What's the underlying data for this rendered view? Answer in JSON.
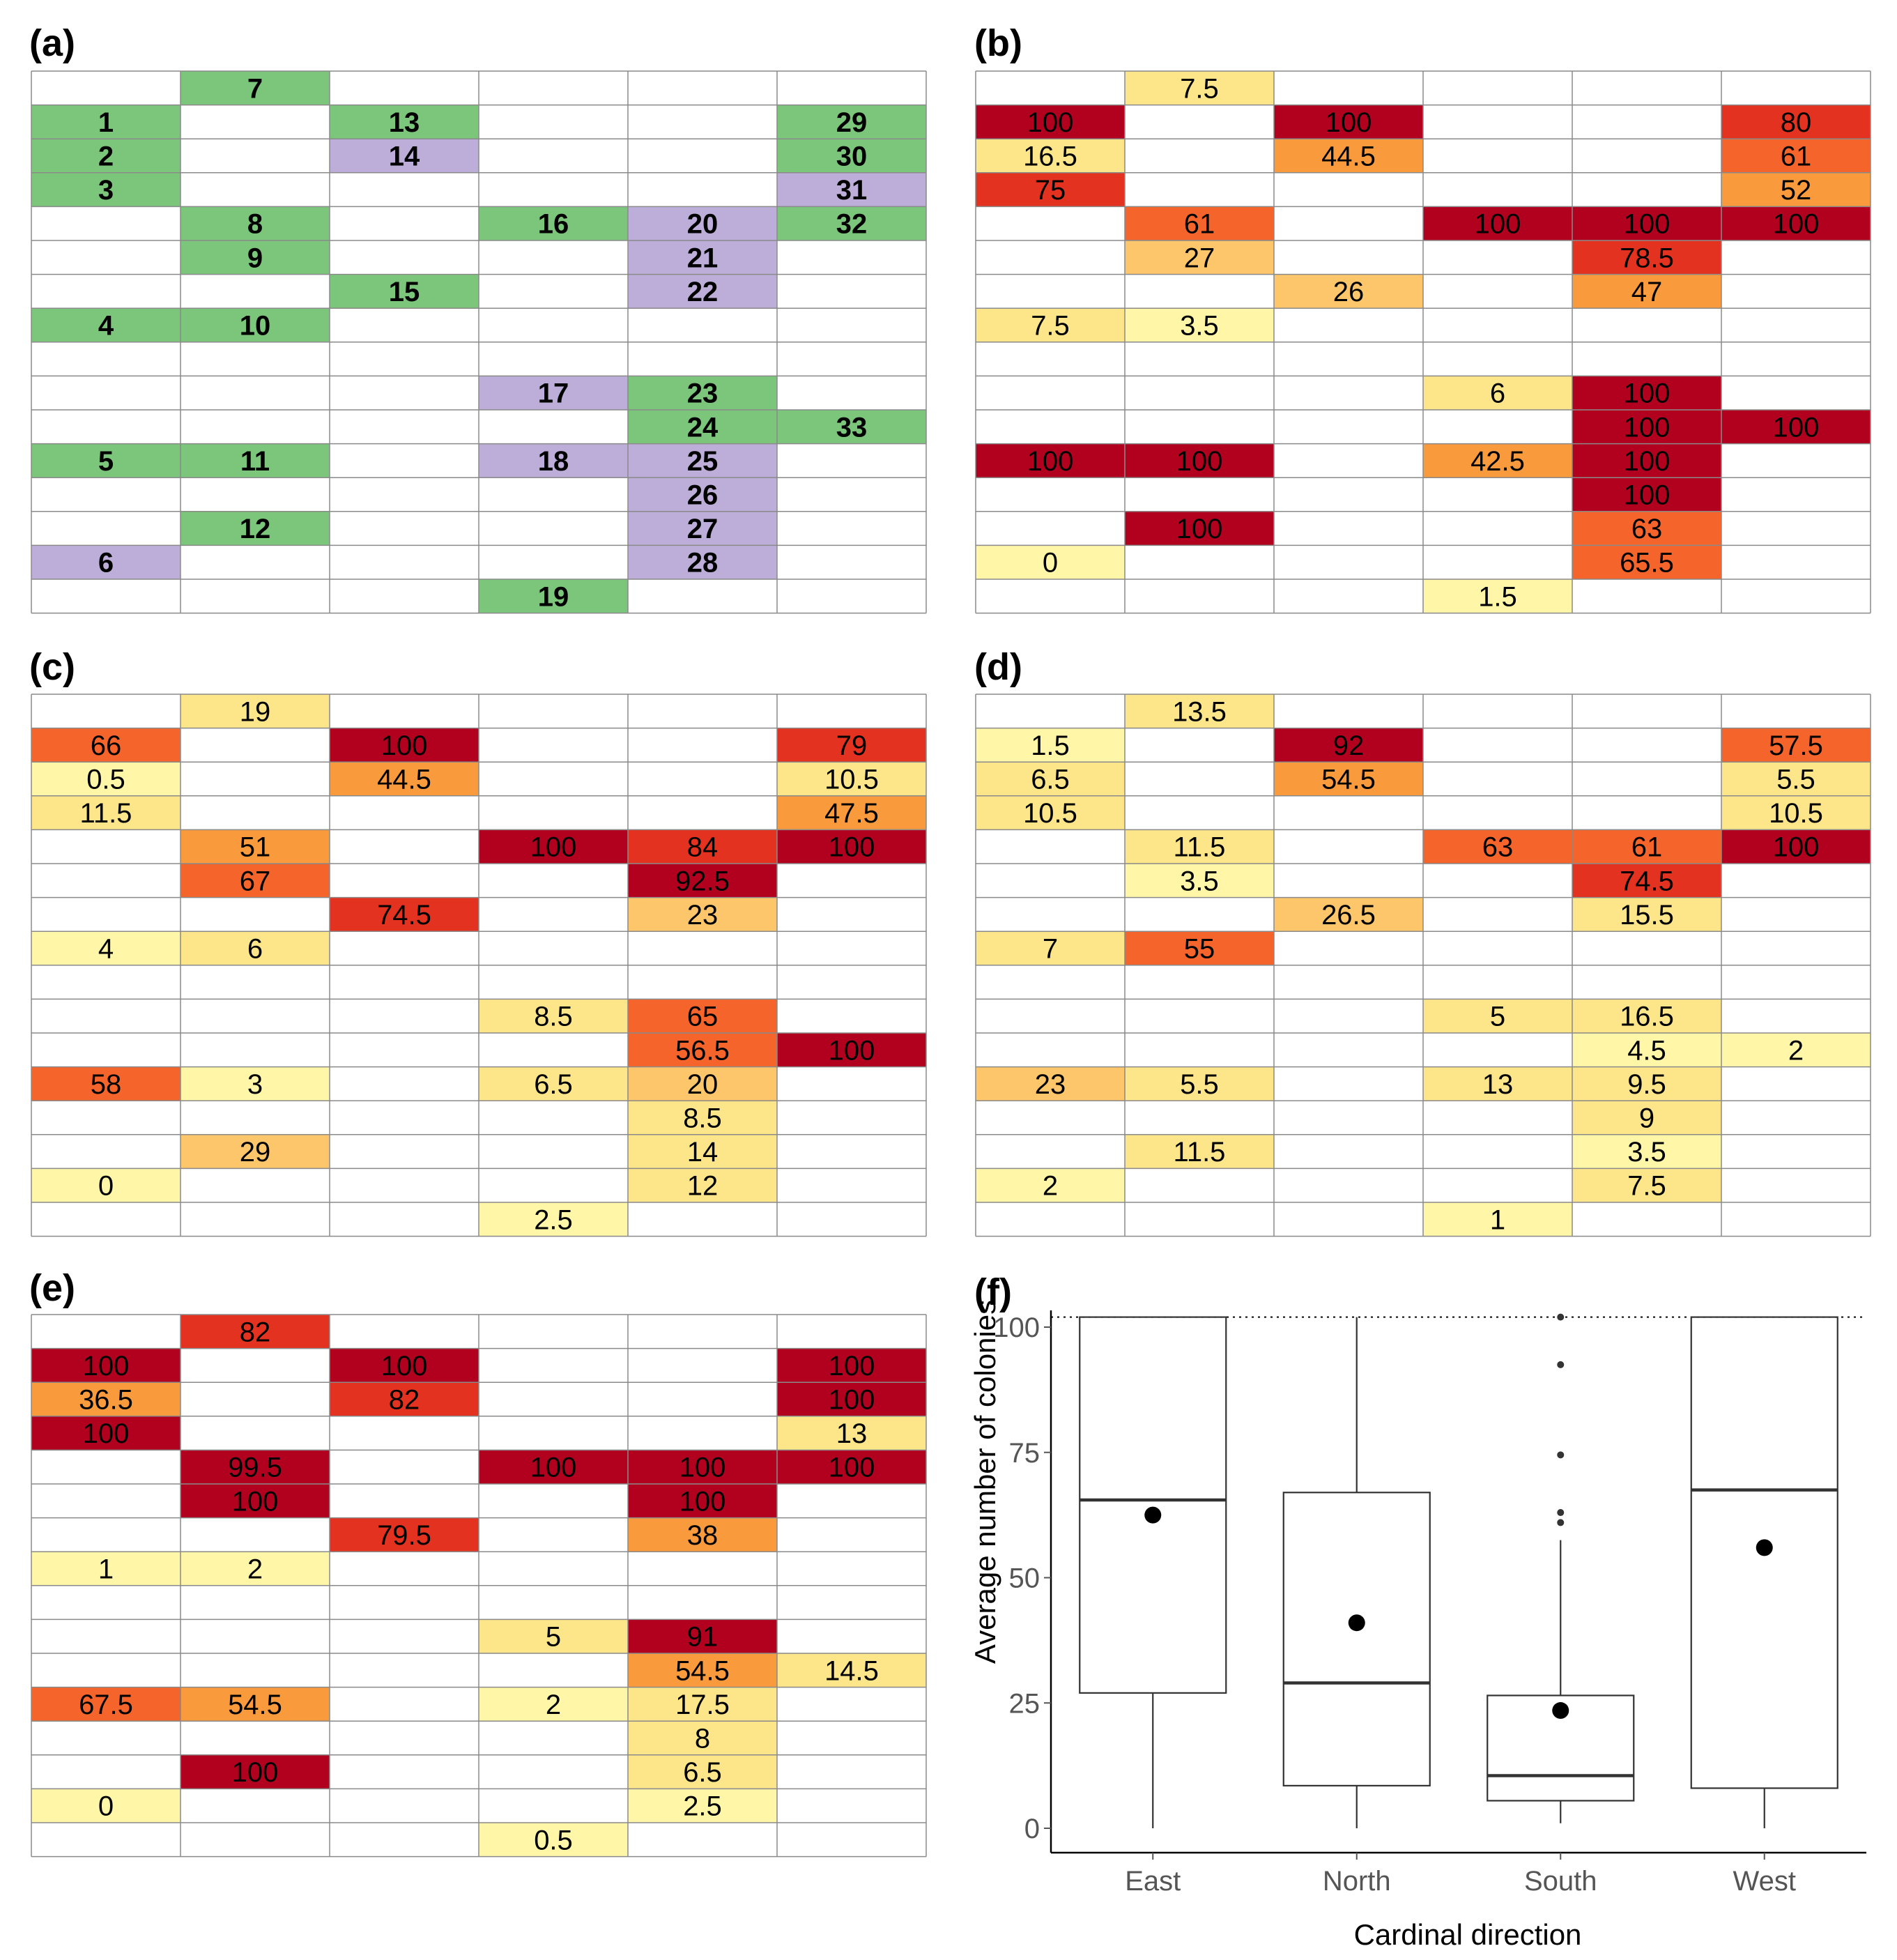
{
  "panels": [
    {
      "id": "a",
      "label": "(a)",
      "kind": "site",
      "cells": [
        {
          "r": 0,
          "c": 1,
          "v": "7",
          "cls": "g"
        },
        {
          "r": 1,
          "c": 0,
          "v": "1",
          "cls": "g"
        },
        {
          "r": 1,
          "c": 2,
          "v": "13",
          "cls": "g"
        },
        {
          "r": 1,
          "c": 5,
          "v": "29",
          "cls": "g"
        },
        {
          "r": 2,
          "c": 0,
          "v": "2",
          "cls": "g"
        },
        {
          "r": 2,
          "c": 2,
          "v": "14",
          "cls": "p"
        },
        {
          "r": 2,
          "c": 5,
          "v": "30",
          "cls": "g"
        },
        {
          "r": 3,
          "c": 0,
          "v": "3",
          "cls": "g"
        },
        {
          "r": 3,
          "c": 5,
          "v": "31",
          "cls": "p"
        },
        {
          "r": 4,
          "c": 1,
          "v": "8",
          "cls": "g"
        },
        {
          "r": 4,
          "c": 3,
          "v": "16",
          "cls": "g"
        },
        {
          "r": 4,
          "c": 4,
          "v": "20",
          "cls": "p"
        },
        {
          "r": 4,
          "c": 5,
          "v": "32",
          "cls": "g"
        },
        {
          "r": 5,
          "c": 1,
          "v": "9",
          "cls": "g"
        },
        {
          "r": 5,
          "c": 4,
          "v": "21",
          "cls": "p"
        },
        {
          "r": 6,
          "c": 2,
          "v": "15",
          "cls": "g"
        },
        {
          "r": 6,
          "c": 4,
          "v": "22",
          "cls": "p"
        },
        {
          "r": 7,
          "c": 0,
          "v": "4",
          "cls": "g"
        },
        {
          "r": 7,
          "c": 1,
          "v": "10",
          "cls": "g"
        },
        {
          "r": 9,
          "c": 3,
          "v": "17",
          "cls": "p"
        },
        {
          "r": 9,
          "c": 4,
          "v": "23",
          "cls": "g"
        },
        {
          "r": 10,
          "c": 4,
          "v": "24",
          "cls": "g"
        },
        {
          "r": 10,
          "c": 5,
          "v": "33",
          "cls": "g"
        },
        {
          "r": 11,
          "c": 0,
          "v": "5",
          "cls": "g"
        },
        {
          "r": 11,
          "c": 1,
          "v": "11",
          "cls": "g"
        },
        {
          "r": 11,
          "c": 3,
          "v": "18",
          "cls": "p"
        },
        {
          "r": 11,
          "c": 4,
          "v": "25",
          "cls": "p"
        },
        {
          "r": 12,
          "c": 4,
          "v": "26",
          "cls": "p"
        },
        {
          "r": 13,
          "c": 1,
          "v": "12",
          "cls": "g"
        },
        {
          "r": 13,
          "c": 4,
          "v": "27",
          "cls": "p"
        },
        {
          "r": 14,
          "c": 0,
          "v": "6",
          "cls": "p"
        },
        {
          "r": 14,
          "c": 4,
          "v": "28",
          "cls": "p"
        },
        {
          "r": 15,
          "c": 3,
          "v": "19",
          "cls": "g"
        }
      ]
    },
    {
      "id": "b",
      "label": "(b)",
      "kind": "heat",
      "cells": [
        {
          "r": 0,
          "c": 1,
          "v": "7.5"
        },
        {
          "r": 1,
          "c": 0,
          "v": "100"
        },
        {
          "r": 1,
          "c": 2,
          "v": "100"
        },
        {
          "r": 1,
          "c": 5,
          "v": "80"
        },
        {
          "r": 2,
          "c": 0,
          "v": "16.5"
        },
        {
          "r": 2,
          "c": 2,
          "v": "44.5"
        },
        {
          "r": 2,
          "c": 5,
          "v": "61"
        },
        {
          "r": 3,
          "c": 0,
          "v": "75"
        },
        {
          "r": 3,
          "c": 5,
          "v": "52"
        },
        {
          "r": 4,
          "c": 1,
          "v": "61"
        },
        {
          "r": 4,
          "c": 3,
          "v": "100"
        },
        {
          "r": 4,
          "c": 4,
          "v": "100"
        },
        {
          "r": 4,
          "c": 5,
          "v": "100"
        },
        {
          "r": 5,
          "c": 1,
          "v": "27"
        },
        {
          "r": 5,
          "c": 4,
          "v": "78.5"
        },
        {
          "r": 6,
          "c": 2,
          "v": "26"
        },
        {
          "r": 6,
          "c": 4,
          "v": "47"
        },
        {
          "r": 7,
          "c": 0,
          "v": "7.5"
        },
        {
          "r": 7,
          "c": 1,
          "v": "3.5"
        },
        {
          "r": 9,
          "c": 3,
          "v": "6"
        },
        {
          "r": 9,
          "c": 4,
          "v": "100"
        },
        {
          "r": 10,
          "c": 4,
          "v": "100"
        },
        {
          "r": 10,
          "c": 5,
          "v": "100"
        },
        {
          "r": 11,
          "c": 0,
          "v": "100"
        },
        {
          "r": 11,
          "c": 1,
          "v": "100"
        },
        {
          "r": 11,
          "c": 3,
          "v": "42.5"
        },
        {
          "r": 11,
          "c": 4,
          "v": "100"
        },
        {
          "r": 12,
          "c": 4,
          "v": "100"
        },
        {
          "r": 13,
          "c": 1,
          "v": "100"
        },
        {
          "r": 13,
          "c": 4,
          "v": "63"
        },
        {
          "r": 14,
          "c": 0,
          "v": "0"
        },
        {
          "r": 14,
          "c": 4,
          "v": "65.5"
        },
        {
          "r": 15,
          "c": 3,
          "v": "1.5"
        }
      ]
    },
    {
      "id": "c",
      "label": "(c)",
      "kind": "heat",
      "cells": [
        {
          "r": 0,
          "c": 1,
          "v": "19"
        },
        {
          "r": 1,
          "c": 0,
          "v": "66"
        },
        {
          "r": 1,
          "c": 2,
          "v": "100"
        },
        {
          "r": 1,
          "c": 5,
          "v": "79"
        },
        {
          "r": 2,
          "c": 0,
          "v": "0.5"
        },
        {
          "r": 2,
          "c": 2,
          "v": "44.5"
        },
        {
          "r": 2,
          "c": 5,
          "v": "10.5"
        },
        {
          "r": 3,
          "c": 0,
          "v": "11.5"
        },
        {
          "r": 3,
          "c": 5,
          "v": "47.5"
        },
        {
          "r": 4,
          "c": 1,
          "v": "51"
        },
        {
          "r": 4,
          "c": 3,
          "v": "100"
        },
        {
          "r": 4,
          "c": 4,
          "v": "84"
        },
        {
          "r": 4,
          "c": 5,
          "v": "100"
        },
        {
          "r": 5,
          "c": 1,
          "v": "67"
        },
        {
          "r": 5,
          "c": 4,
          "v": "92.5"
        },
        {
          "r": 6,
          "c": 2,
          "v": "74.5"
        },
        {
          "r": 6,
          "c": 4,
          "v": "23"
        },
        {
          "r": 7,
          "c": 0,
          "v": "4"
        },
        {
          "r": 7,
          "c": 1,
          "v": "6"
        },
        {
          "r": 9,
          "c": 3,
          "v": "8.5"
        },
        {
          "r": 9,
          "c": 4,
          "v": "65"
        },
        {
          "r": 10,
          "c": 4,
          "v": "56.5"
        },
        {
          "r": 10,
          "c": 5,
          "v": "100"
        },
        {
          "r": 11,
          "c": 0,
          "v": "58"
        },
        {
          "r": 11,
          "c": 1,
          "v": "3"
        },
        {
          "r": 11,
          "c": 3,
          "v": "6.5"
        },
        {
          "r": 11,
          "c": 4,
          "v": "20"
        },
        {
          "r": 12,
          "c": 4,
          "v": "8.5"
        },
        {
          "r": 13,
          "c": 1,
          "v": "29"
        },
        {
          "r": 13,
          "c": 4,
          "v": "14"
        },
        {
          "r": 14,
          "c": 0,
          "v": "0"
        },
        {
          "r": 14,
          "c": 4,
          "v": "12"
        },
        {
          "r": 15,
          "c": 3,
          "v": "2.5"
        }
      ]
    },
    {
      "id": "d",
      "label": "(d)",
      "kind": "heat",
      "cells": [
        {
          "r": 0,
          "c": 1,
          "v": "13.5"
        },
        {
          "r": 1,
          "c": 0,
          "v": "1.5"
        },
        {
          "r": 1,
          "c": 2,
          "v": "92"
        },
        {
          "r": 1,
          "c": 5,
          "v": "57.5"
        },
        {
          "r": 2,
          "c": 0,
          "v": "6.5"
        },
        {
          "r": 2,
          "c": 2,
          "v": "54.5"
        },
        {
          "r": 2,
          "c": 5,
          "v": "5.5"
        },
        {
          "r": 3,
          "c": 0,
          "v": "10.5"
        },
        {
          "r": 3,
          "c": 5,
          "v": "10.5"
        },
        {
          "r": 4,
          "c": 1,
          "v": "11.5"
        },
        {
          "r": 4,
          "c": 3,
          "v": "63"
        },
        {
          "r": 4,
          "c": 4,
          "v": "61"
        },
        {
          "r": 4,
          "c": 5,
          "v": "100"
        },
        {
          "r": 5,
          "c": 1,
          "v": "3.5"
        },
        {
          "r": 5,
          "c": 4,
          "v": "74.5"
        },
        {
          "r": 6,
          "c": 2,
          "v": "26.5"
        },
        {
          "r": 6,
          "c": 4,
          "v": "15.5"
        },
        {
          "r": 7,
          "c": 0,
          "v": "7"
        },
        {
          "r": 7,
          "c": 1,
          "v": "55"
        },
        {
          "r": 9,
          "c": 3,
          "v": "5"
        },
        {
          "r": 9,
          "c": 4,
          "v": "16.5"
        },
        {
          "r": 10,
          "c": 4,
          "v": "4.5"
        },
        {
          "r": 10,
          "c": 5,
          "v": "2"
        },
        {
          "r": 11,
          "c": 0,
          "v": "23"
        },
        {
          "r": 11,
          "c": 1,
          "v": "5.5"
        },
        {
          "r": 11,
          "c": 3,
          "v": "13"
        },
        {
          "r": 11,
          "c": 4,
          "v": "9.5"
        },
        {
          "r": 12,
          "c": 4,
          "v": "9"
        },
        {
          "r": 13,
          "c": 1,
          "v": "11.5"
        },
        {
          "r": 13,
          "c": 4,
          "v": "3.5"
        },
        {
          "r": 14,
          "c": 0,
          "v": "2"
        },
        {
          "r": 14,
          "c": 4,
          "v": "7.5"
        },
        {
          "r": 15,
          "c": 3,
          "v": "1"
        }
      ]
    },
    {
      "id": "e",
      "label": "(e)",
      "kind": "heat",
      "cells": [
        {
          "r": 0,
          "c": 1,
          "v": "82"
        },
        {
          "r": 1,
          "c": 0,
          "v": "100"
        },
        {
          "r": 1,
          "c": 2,
          "v": "100"
        },
        {
          "r": 1,
          "c": 5,
          "v": "100"
        },
        {
          "r": 2,
          "c": 0,
          "v": "36.5"
        },
        {
          "r": 2,
          "c": 2,
          "v": "82"
        },
        {
          "r": 2,
          "c": 5,
          "v": "100"
        },
        {
          "r": 3,
          "c": 0,
          "v": "100"
        },
        {
          "r": 3,
          "c": 5,
          "v": "13"
        },
        {
          "r": 4,
          "c": 1,
          "v": "99.5"
        },
        {
          "r": 4,
          "c": 3,
          "v": "100"
        },
        {
          "r": 4,
          "c": 4,
          "v": "100"
        },
        {
          "r": 4,
          "c": 5,
          "v": "100"
        },
        {
          "r": 5,
          "c": 1,
          "v": "100"
        },
        {
          "r": 5,
          "c": 4,
          "v": "100"
        },
        {
          "r": 6,
          "c": 2,
          "v": "79.5"
        },
        {
          "r": 6,
          "c": 4,
          "v": "38"
        },
        {
          "r": 7,
          "c": 0,
          "v": "1"
        },
        {
          "r": 7,
          "c": 1,
          "v": "2"
        },
        {
          "r": 9,
          "c": 3,
          "v": "5"
        },
        {
          "r": 9,
          "c": 4,
          "v": "91"
        },
        {
          "r": 10,
          "c": 4,
          "v": "54.5"
        },
        {
          "r": 10,
          "c": 5,
          "v": "14.5"
        },
        {
          "r": 11,
          "c": 0,
          "v": "67.5"
        },
        {
          "r": 11,
          "c": 1,
          "v": "54.5"
        },
        {
          "r": 11,
          "c": 3,
          "v": "2"
        },
        {
          "r": 11,
          "c": 4,
          "v": "17.5"
        },
        {
          "r": 12,
          "c": 4,
          "v": "8"
        },
        {
          "r": 13,
          "c": 1,
          "v": "100"
        },
        {
          "r": 13,
          "c": 4,
          "v": "6.5"
        },
        {
          "r": 14,
          "c": 0,
          "v": "0"
        },
        {
          "r": 14,
          "c": 4,
          "v": "2.5"
        },
        {
          "r": 15,
          "c": 3,
          "v": "0.5"
        }
      ]
    }
  ],
  "site_colors": {
    "g": "#7bc67b",
    "p": "#bcaed8"
  },
  "heat_colors": [
    "#fff6a8",
    "#fde58a",
    "#fdc66a",
    "#f99b3d",
    "#f5652b",
    "#e3321f",
    "#b2001f"
  ],
  "chart_data": {
    "type": "box",
    "panel_label": "(f)",
    "title": "",
    "xlabel": "Cardinal direction",
    "ylabel": "Average number of colonies",
    "ylim": [
      0,
      102
    ],
    "yticks": [
      "0",
      "25",
      "50",
      "75",
      "100"
    ],
    "reference_line": 102,
    "categories": [
      "East",
      "North",
      "South",
      "West"
    ],
    "boxes": [
      {
        "name": "East",
        "whisker_low": 0,
        "q1": 27,
        "median": 65.5,
        "q3": 102,
        "whisker_high": 102,
        "mean": 62.5,
        "outliers": []
      },
      {
        "name": "North",
        "whisker_low": 0,
        "q1": 8.5,
        "median": 29,
        "q3": 67,
        "whisker_high": 102,
        "mean": 41,
        "outliers": []
      },
      {
        "name": "South",
        "whisker_low": 1,
        "q1": 5.5,
        "median": 10.5,
        "q3": 26.5,
        "whisker_high": 57.5,
        "mean": 23.5,
        "outliers": [
          61,
          63,
          74.5,
          92.5,
          102
        ]
      },
      {
        "name": "West",
        "whisker_low": 0,
        "q1": 8,
        "median": 67.5,
        "q3": 102,
        "whisker_high": 102,
        "mean": 56,
        "outliers": []
      }
    ]
  }
}
